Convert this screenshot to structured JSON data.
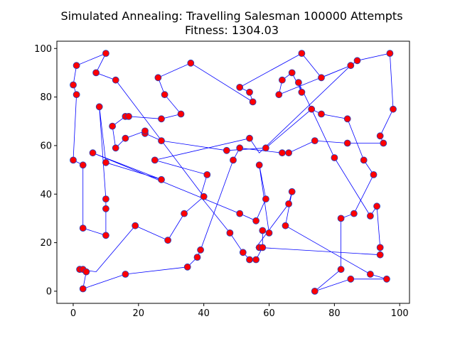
{
  "chart_data": {
    "type": "scatter",
    "title": "Simulated Annealing: Travelling Salesman 100000 Attempts",
    "subtitle": "Fitness: 1304.03",
    "xlabel": "",
    "ylabel": "",
    "xlim": [
      -5,
      103
    ],
    "ylim": [
      -5,
      103
    ],
    "x_ticks": [
      0,
      20,
      40,
      60,
      80,
      100
    ],
    "y_ticks": [
      0,
      20,
      40,
      60,
      80,
      100
    ],
    "grid": false,
    "colors": {
      "route": "#0000ff",
      "city_face": "#ff0000",
      "city_edge": "#1f3fbf"
    },
    "series": [
      {
        "kind": "route-line",
        "points": [
          [
            1,
            93
          ],
          [
            10,
            98
          ],
          [
            7,
            90
          ],
          [
            13,
            87
          ],
          [
            40,
            39
          ],
          [
            34,
            32
          ],
          [
            29,
            21
          ],
          [
            19,
            27
          ],
          [
            7,
            8
          ],
          [
            2,
            9
          ],
          [
            3,
            9
          ],
          [
            4,
            8
          ],
          [
            3,
            1
          ],
          [
            16,
            7
          ],
          [
            35,
            10
          ],
          [
            38,
            14
          ],
          [
            39,
            17
          ],
          [
            49,
            54
          ],
          [
            51,
            59
          ],
          [
            64,
            57
          ],
          [
            66,
            57
          ],
          [
            74,
            62
          ],
          [
            84,
            61
          ],
          [
            95,
            61
          ],
          [
            94,
            64
          ],
          [
            98,
            75
          ],
          [
            97,
            98
          ],
          [
            87,
            95
          ],
          [
            85,
            93
          ],
          [
            63,
            81
          ],
          [
            64,
            87
          ],
          [
            67,
            90
          ],
          [
            70,
            82
          ],
          [
            69,
            86
          ],
          [
            73,
            75
          ],
          [
            76,
            73
          ],
          [
            84,
            71
          ],
          [
            89,
            54
          ],
          [
            92,
            48
          ],
          [
            86,
            32
          ],
          [
            82,
            30
          ],
          [
            82,
            9
          ],
          [
            74,
            0
          ],
          [
            85,
            5
          ],
          [
            96,
            5
          ],
          [
            91,
            7
          ],
          [
            65,
            27
          ],
          [
            67,
            41
          ],
          [
            66,
            36
          ],
          [
            56,
            18
          ],
          [
            57,
            18
          ],
          [
            94,
            15
          ],
          [
            94,
            18
          ],
          [
            93,
            35
          ],
          [
            91,
            31
          ],
          [
            80,
            55
          ],
          [
            73,
            75
          ],
          [
            59,
            59
          ],
          [
            47,
            58
          ],
          [
            27,
            62
          ],
          [
            22,
            65
          ],
          [
            22,
            66
          ],
          [
            16,
            63
          ],
          [
            13,
            59
          ],
          [
            12,
            68
          ],
          [
            16,
            72
          ],
          [
            17,
            72
          ],
          [
            27,
            71
          ],
          [
            33,
            73
          ],
          [
            28,
            81
          ],
          [
            26,
            88
          ],
          [
            36,
            94
          ],
          [
            55,
            78
          ],
          [
            54,
            82
          ],
          [
            51,
            84
          ],
          [
            70,
            98
          ],
          [
            76,
            88
          ],
          [
            85,
            93
          ],
          [
            57,
            57
          ],
          [
            54,
            63
          ],
          [
            25,
            54
          ],
          [
            41,
            48
          ],
          [
            39,
            39
          ],
          [
            48,
            24
          ],
          [
            52,
            16
          ],
          [
            54,
            13
          ],
          [
            56,
            13
          ],
          [
            58,
            18
          ],
          [
            58,
            25
          ],
          [
            60,
            24
          ],
          [
            57,
            52
          ],
          [
            59,
            38
          ],
          [
            56,
            29
          ],
          [
            51,
            32
          ],
          [
            6,
            57
          ],
          [
            27,
            46
          ],
          [
            10,
            53
          ],
          [
            8,
            76
          ],
          [
            10,
            38
          ],
          [
            10,
            34
          ],
          [
            10,
            23
          ],
          [
            3,
            26
          ],
          [
            3,
            52
          ],
          [
            0,
            54
          ],
          [
            1,
            81
          ],
          [
            0,
            85
          ],
          [
            1,
            93
          ]
        ]
      },
      {
        "kind": "cities",
        "points": [
          [
            1,
            93
          ],
          [
            10,
            98
          ],
          [
            7,
            90
          ],
          [
            13,
            87
          ],
          [
            0,
            85
          ],
          [
            1,
            81
          ],
          [
            8,
            76
          ],
          [
            12,
            68
          ],
          [
            16,
            72
          ],
          [
            17,
            72
          ],
          [
            16,
            63
          ],
          [
            13,
            59
          ],
          [
            6,
            57
          ],
          [
            10,
            53
          ],
          [
            0,
            54
          ],
          [
            3,
            52
          ],
          [
            10,
            38
          ],
          [
            10,
            34
          ],
          [
            10,
            23
          ],
          [
            3,
            26
          ],
          [
            2,
            9
          ],
          [
            3,
            9
          ],
          [
            4,
            8
          ],
          [
            3,
            1
          ],
          [
            16,
            7
          ],
          [
            19,
            27
          ],
          [
            29,
            21
          ],
          [
            34,
            32
          ],
          [
            35,
            10
          ],
          [
            38,
            14
          ],
          [
            39,
            17
          ],
          [
            40,
            39
          ],
          [
            41,
            48
          ],
          [
            48,
            24
          ],
          [
            52,
            16
          ],
          [
            54,
            13
          ],
          [
            56,
            13
          ],
          [
            57,
            18
          ],
          [
            58,
            18
          ],
          [
            56,
            29
          ],
          [
            58,
            25
          ],
          [
            60,
            24
          ],
          [
            59,
            38
          ],
          [
            51,
            32
          ],
          [
            57,
            52
          ],
          [
            65,
            27
          ],
          [
            66,
            36
          ],
          [
            67,
            41
          ],
          [
            74,
            0
          ],
          [
            85,
            5
          ],
          [
            96,
            5
          ],
          [
            91,
            7
          ],
          [
            82,
            9
          ],
          [
            82,
            30
          ],
          [
            86,
            32
          ],
          [
            91,
            31
          ],
          [
            93,
            35
          ],
          [
            94,
            18
          ],
          [
            94,
            15
          ],
          [
            92,
            48
          ],
          [
            89,
            54
          ],
          [
            80,
            55
          ],
          [
            74,
            62
          ],
          [
            84,
            61
          ],
          [
            95,
            61
          ],
          [
            94,
            64
          ],
          [
            98,
            75
          ],
          [
            97,
            98
          ],
          [
            87,
            95
          ],
          [
            85,
            93
          ],
          [
            76,
            88
          ],
          [
            70,
            98
          ],
          [
            69,
            86
          ],
          [
            67,
            90
          ],
          [
            64,
            87
          ],
          [
            63,
            81
          ],
          [
            70,
            82
          ],
          [
            73,
            75
          ],
          [
            76,
            73
          ],
          [
            84,
            71
          ],
          [
            59,
            59
          ],
          [
            64,
            57
          ],
          [
            66,
            57
          ],
          [
            51,
            59
          ],
          [
            47,
            58
          ],
          [
            49,
            54
          ],
          [
            54,
            63
          ],
          [
            55,
            78
          ],
          [
            54,
            82
          ],
          [
            51,
            84
          ],
          [
            26,
            88
          ],
          [
            28,
            81
          ],
          [
            36,
            94
          ],
          [
            27,
            71
          ],
          [
            33,
            73
          ],
          [
            22,
            65
          ],
          [
            22,
            66
          ],
          [
            27,
            62
          ],
          [
            25,
            54
          ],
          [
            27,
            46
          ]
        ]
      }
    ]
  }
}
